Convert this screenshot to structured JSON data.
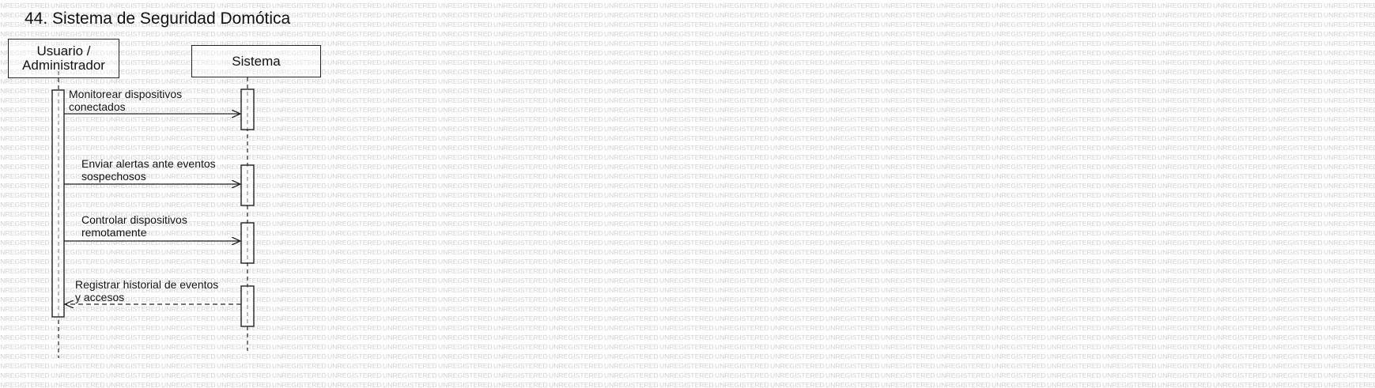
{
  "diagram": {
    "title": "44. Sistema de Seguridad Domótica",
    "watermark_text": "UNREGISTERED",
    "lifelines": [
      {
        "id": "user",
        "label": "Usuario /\nAdministrador"
      },
      {
        "id": "system",
        "label": "Sistema"
      }
    ],
    "messages": [
      {
        "from": "user",
        "to": "system",
        "kind": "sync",
        "label": "Monitorear dispositivos\nconectados"
      },
      {
        "from": "user",
        "to": "system",
        "kind": "sync",
        "label": "Enviar alertas ante eventos\nsospechosos"
      },
      {
        "from": "user",
        "to": "system",
        "kind": "sync",
        "label": "Controlar dispositivos\nremotamente"
      },
      {
        "from": "system",
        "to": "user",
        "kind": "return",
        "label": "Registrar historial de eventos\ny accesos"
      }
    ],
    "colors": {
      "line": "#222222",
      "watermark": "#d0d0d0",
      "background": "#ffffff"
    }
  }
}
